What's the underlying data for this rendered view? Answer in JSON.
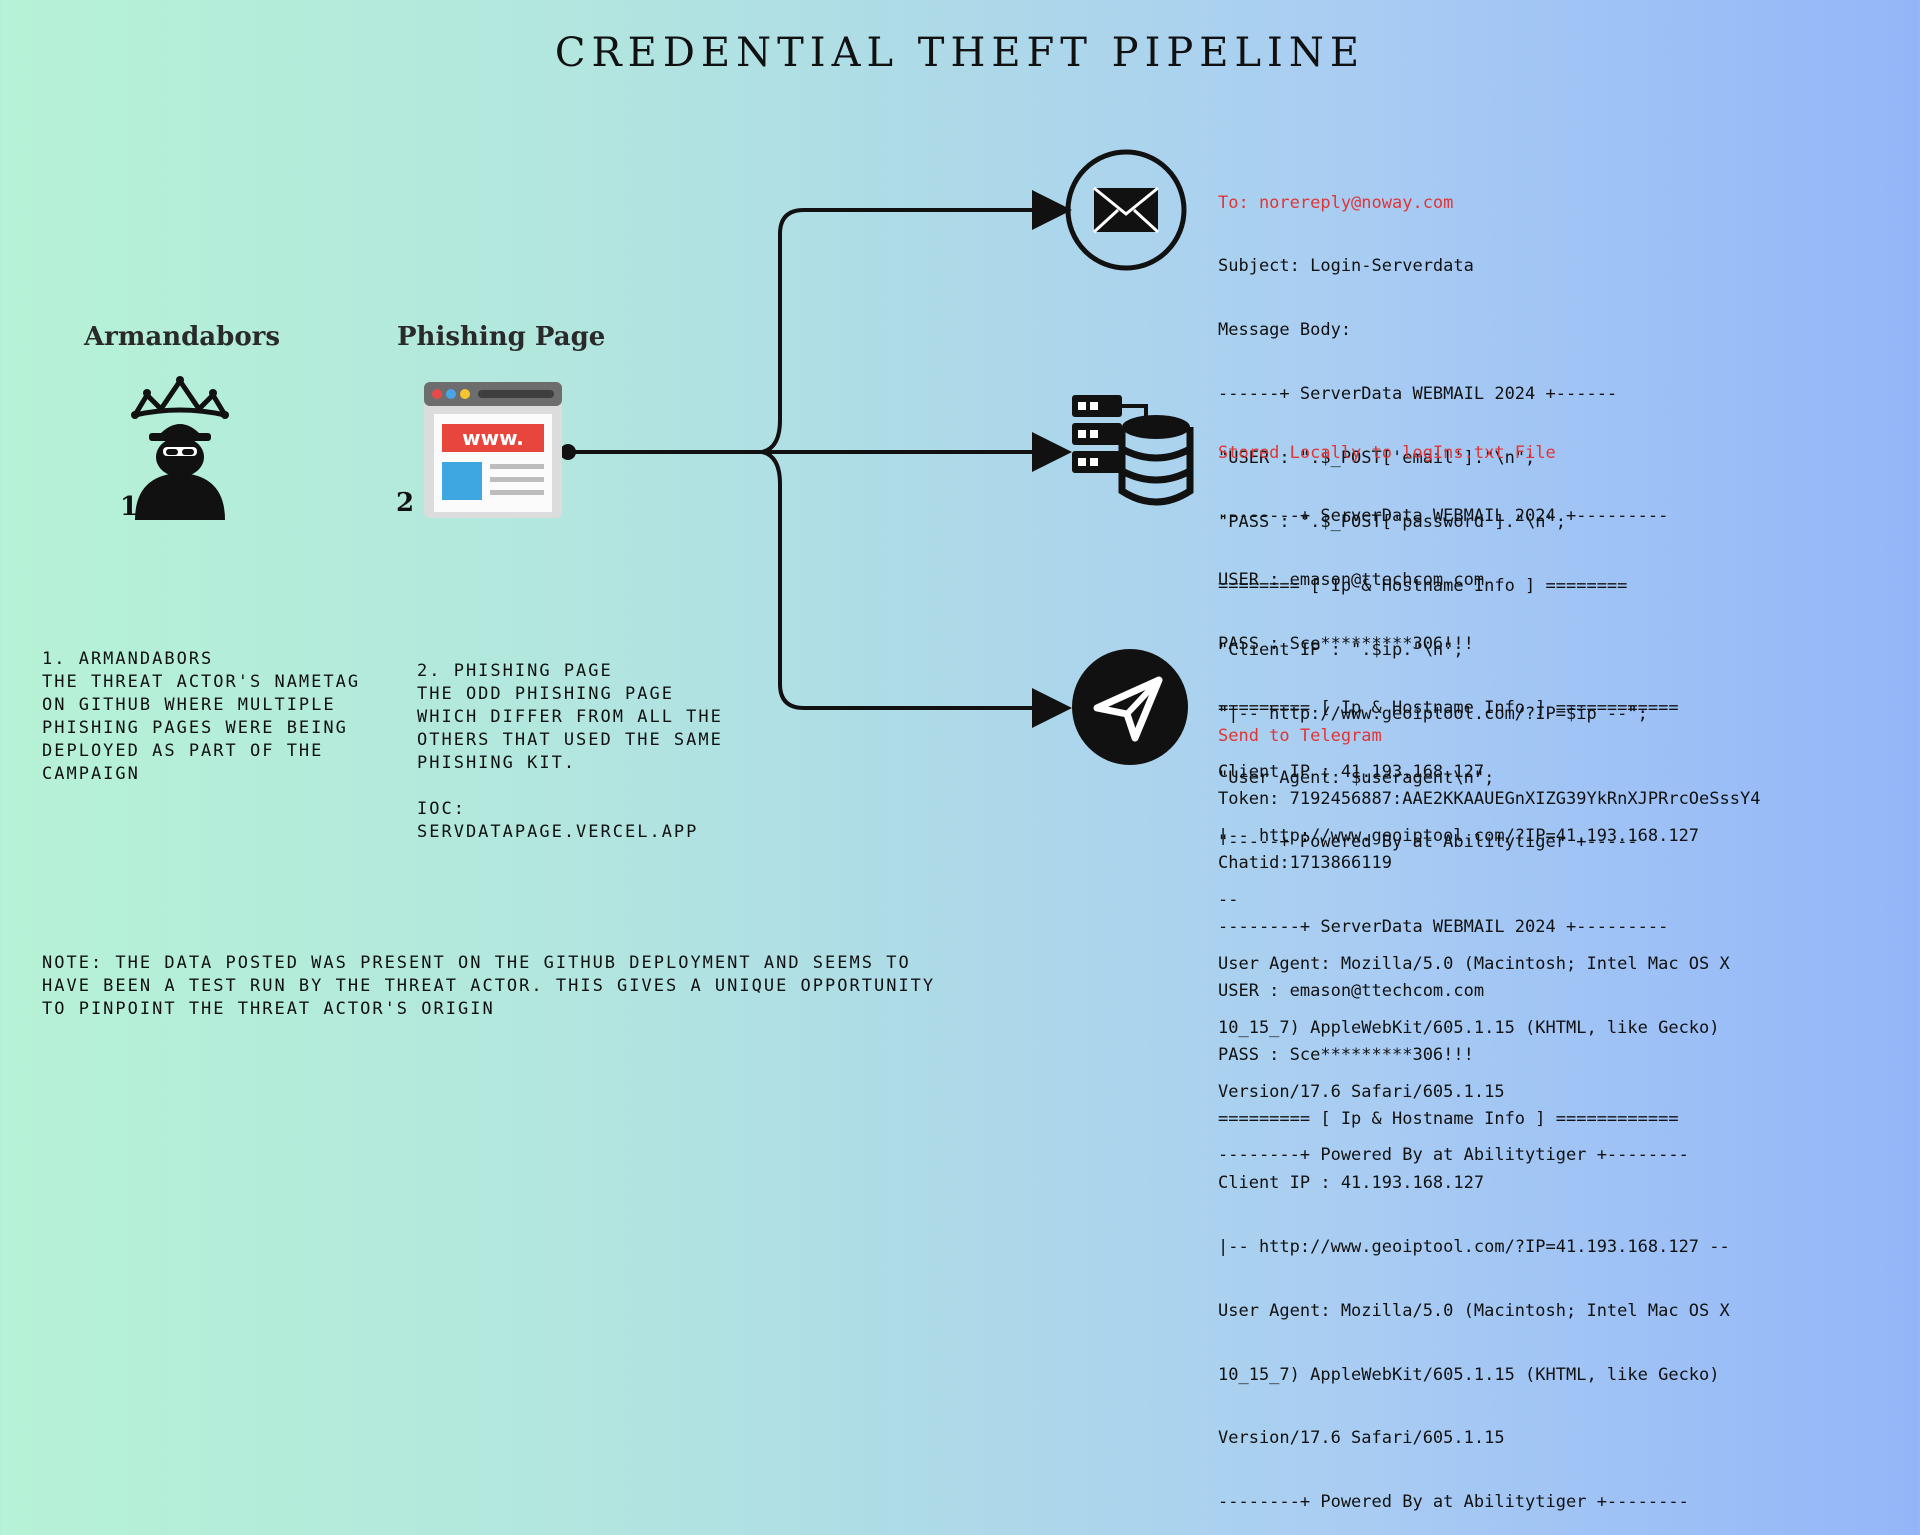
{
  "title": "CREDENTIAL THEFT PIPELINE",
  "actor": {
    "heading": "Armandabors",
    "number": "1",
    "icon": "hacker-crown-icon",
    "description": " 1.        ARMANDABORS\nTHE THREAT ACTOR'S NAMETAG\nON GITHUB WHERE MULTIPLE\nPHISHING PAGES WERE BEING\nDEPLOYED AS PART OF THE\nCAMPAIGN"
  },
  "phishing_page": {
    "heading": "Phishing Page",
    "number": "2",
    "icon": "web-page-icon",
    "icon_text": "www.",
    "description": "2.         PHISHING PAGE\nTHE ODD PHISHING PAGE\nWHICH DIFFER FROM ALL THE\nOTHERS THAT USED THE SAME\nPHISHING KIT.\n\nIOC:\nSERVDATAPAGE.VERCEL.APP"
  },
  "note": "NOTE: THE DATA POSTED WAS PRESENT ON THE GITHUB DEPLOYMENT AND SEEMS TO\nHAVE BEEN A TEST RUN BY THE THREAT ACTOR. THIS GIVES A UNIQUE OPPORTUNITY\nTO PINPOINT THE THREAT ACTOR'S ORIGIN",
  "colors": {
    "header_red": "#e03535",
    "dark": "#111111"
  },
  "email_block": {
    "icon": "envelope-icon",
    "header": "To: norereply@noway.com",
    "lines": [
      "Subject: Login-Serverdata",
      "Message Body:",
      "------+ ServerData WEBMAIL 2024 +------",
      "\"USER : \".$_POST['email'].\"\\n\";",
      "\"PASS : \".$_POST['password'].\"\\n\";",
      "======== [ Ip & Hostname Info ] ========",
      "\"Client IP : \".$ip.\"\\n\";",
      "\"|-- http://www.geoiptool.com/?IP=$ip --\";",
      "\"User Agent: $useragent\\n\";",
      "\"-----+ Powered By at Abilitytiger +-----"
    ]
  },
  "local_block": {
    "icon": "server-database-icon",
    "header": "Stored Locally to logIns.txt File",
    "lines": [
      "--------+ ServerData WEBMAIL 2024 +---------",
      "USER : emason@ttechcom.com",
      "PASS : Sce*********306!!!",
      "========= [ Ip & Hostname Info ] ============",
      "Client IP : 41.193.168.127",
      "|-- http://www.geoiptool.com/?IP=41.193.168.127",
      "--",
      "User Agent: Mozilla/5.0 (Macintosh; Intel Mac OS X",
      "10_15_7) AppleWebKit/605.1.15 (KHTML, like Gecko)",
      "Version/17.6 Safari/605.1.15",
      "--------+ Powered By at Abilitytiger +--------"
    ]
  },
  "telegram_block": {
    "icon": "telegram-send-icon",
    "header": "Send to Telegram",
    "lines": [
      "Token: 7192456887:AAE2KKAAUEGnXIZG39YkRnXJPRrcOeSssY4",
      "Chatid:1713866119",
      "--------+ ServerData WEBMAIL 2024 +---------",
      "USER : emason@ttechcom.com",
      "PASS : Sce*********306!!!",
      "========= [ Ip & Hostname Info ] ============",
      "Client IP : 41.193.168.127",
      "|-- http://www.geoiptool.com/?IP=41.193.168.127 --",
      "User Agent: Mozilla/5.0 (Macintosh; Intel Mac OS X",
      "10_15_7) AppleWebKit/605.1.15 (KHTML, like Gecko)",
      "Version/17.6 Safari/605.1.15",
      "--------+ Powered By at Abilitytiger +--------"
    ]
  }
}
